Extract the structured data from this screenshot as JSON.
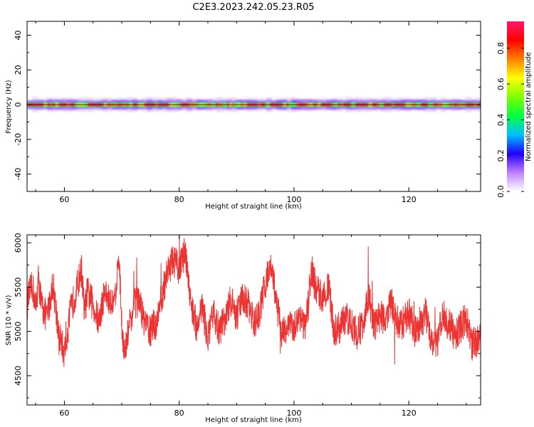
{
  "title": "C2E3.2023.242.05.23.R05",
  "chart_data": [
    {
      "type": "heatmap",
      "xlabel": "Height of straight line (km)",
      "ylabel": "Frequency (Hz)",
      "xlim": [
        53.5,
        132.5
      ],
      "ylim": [
        -50,
        48
      ],
      "xticks": [
        60,
        80,
        100,
        120
      ],
      "yticks": [
        -40,
        -20,
        0,
        20,
        40
      ],
      "ytick_labels": [
        "-40",
        "-20",
        "0",
        "20",
        "40"
      ],
      "band_center_hz": 0,
      "band_halfwidth_hz": 3,
      "colorbar": {
        "label": "Normalized spectral amplitude",
        "range": [
          0.0,
          0.95
        ],
        "ticks": [
          0.0,
          0.2,
          0.4,
          0.6,
          0.8
        ],
        "tick_labels": [
          "0.0",
          "0.2",
          "0.4",
          "0.6",
          "0.8"
        ],
        "colors": [
          "#ffffff",
          "#c080ff",
          "#2000ff",
          "#00c0ff",
          "#00ff40",
          "#80ff00",
          "#ffff00",
          "#ff8000",
          "#ff0000",
          "#ff1a6a"
        ]
      }
    },
    {
      "type": "line",
      "xlabel": "Height of straight line (km)",
      "ylabel": "SNR (10 * v/v)",
      "xlim": [
        53.5,
        132.5
      ],
      "ylim": [
        4170,
        6090
      ],
      "xticks": [
        60,
        80,
        100,
        120
      ],
      "yticks": [
        4500,
        5000,
        5500,
        6000
      ],
      "ytick_labels": [
        "4500",
        "5000",
        "5500",
        "6000"
      ],
      "color": "#ee3333",
      "series": [
        {
          "x": [
            53.5,
            54,
            54.5,
            55,
            55.5,
            56,
            57,
            58,
            59,
            60,
            61,
            62,
            63,
            63.5,
            64,
            65,
            66,
            67,
            68,
            69,
            69.5,
            70,
            70.5,
            71,
            72,
            73,
            74,
            75,
            76,
            77,
            78,
            79,
            80,
            81,
            82,
            83,
            84,
            85,
            86,
            87,
            88,
            89,
            90,
            91,
            92,
            93,
            94,
            95,
            96,
            97,
            98,
            99,
            100,
            101,
            102,
            103,
            104,
            105,
            106,
            107,
            108,
            109,
            110,
            111,
            112,
            113,
            114,
            115,
            116,
            117,
            118,
            119,
            120,
            121,
            122,
            123,
            124,
            125,
            126,
            127,
            128,
            129,
            130,
            131,
            132,
            132.5
          ],
          "y": [
            5300,
            5450,
            5500,
            5250,
            5600,
            5300,
            5150,
            5550,
            5000,
            4750,
            5200,
            5450,
            5700,
            5200,
            5450,
            5300,
            5100,
            5450,
            5300,
            5500,
            5850,
            5100,
            4700,
            4950,
            5300,
            5350,
            5100,
            5000,
            5100,
            5400,
            5700,
            5800,
            5700,
            5900,
            5350,
            5050,
            5300,
            4900,
            5200,
            5000,
            5150,
            5350,
            5150,
            5400,
            5300,
            5100,
            5200,
            5550,
            5750,
            5300,
            4950,
            5100,
            5050,
            5200,
            5000,
            5700,
            5450,
            5400,
            5500,
            5000,
            5050,
            5150,
            5100,
            4950,
            5100,
            5400,
            5050,
            5200,
            5100,
            5350,
            5050,
            5100,
            5200,
            5000,
            5100,
            5200,
            4900,
            4900,
            5200,
            5100,
            4950,
            5050,
            5150,
            4850,
            4900,
            5000
          ]
        }
      ]
    }
  ]
}
